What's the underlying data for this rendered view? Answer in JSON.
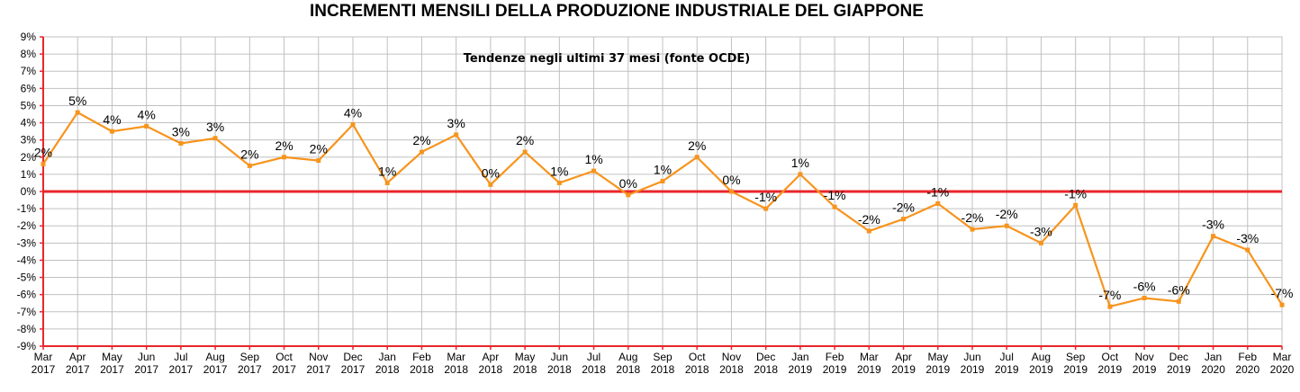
{
  "chart_data": {
    "type": "line",
    "title": "INCREMENTI MENSILI DELLA PRODUZIONE INDUSTRIALE DEL GIAPPONE",
    "subtitle": "Tendenze negli ultimi 37 mesi (fonte OCDE)",
    "xlabel": "",
    "ylabel": "",
    "ylim": [
      -9,
      9
    ],
    "y_ticks": [
      "-9%",
      "-8%",
      "-7%",
      "-6%",
      "-5%",
      "-4%",
      "-3%",
      "-2%",
      "-1%",
      "0%",
      "1%",
      "2%",
      "3%",
      "4%",
      "5%",
      "6%",
      "7%",
      "8%",
      "9%"
    ],
    "grid": true,
    "categories": [
      [
        "Mar",
        "2017"
      ],
      [
        "Apr",
        "2017"
      ],
      [
        "May",
        "2017"
      ],
      [
        "Jun",
        "2017"
      ],
      [
        "Jul",
        "2017"
      ],
      [
        "Aug",
        "2017"
      ],
      [
        "Sep",
        "2017"
      ],
      [
        "Oct",
        "2017"
      ],
      [
        "Nov",
        "2017"
      ],
      [
        "Dec",
        "2017"
      ],
      [
        "Jan",
        "2018"
      ],
      [
        "Feb",
        "2018"
      ],
      [
        "Mar",
        "2018"
      ],
      [
        "Apr",
        "2018"
      ],
      [
        "May",
        "2018"
      ],
      [
        "Jun",
        "2018"
      ],
      [
        "Jul",
        "2018"
      ],
      [
        "Aug",
        "2018"
      ],
      [
        "Sep",
        "2018"
      ],
      [
        "Oct",
        "2018"
      ],
      [
        "Nov",
        "2018"
      ],
      [
        "Dec",
        "2018"
      ],
      [
        "Jan",
        "2019"
      ],
      [
        "Feb",
        "2019"
      ],
      [
        "Mar",
        "2019"
      ],
      [
        "Apr",
        "2019"
      ],
      [
        "May",
        "2019"
      ],
      [
        "Jun",
        "2019"
      ],
      [
        "Jul",
        "2019"
      ],
      [
        "Aug",
        "2019"
      ],
      [
        "Sep",
        "2019"
      ],
      [
        "Oct",
        "2019"
      ],
      [
        "Nov",
        "2019"
      ],
      [
        "Dec",
        "2019"
      ],
      [
        "Jan",
        "2020"
      ],
      [
        "Feb",
        "2020"
      ],
      [
        "Mar",
        "2020"
      ]
    ],
    "series": [
      {
        "values": [
          1.6,
          4.6,
          3.5,
          3.8,
          2.8,
          3.1,
          1.5,
          2.0,
          1.8,
          3.9,
          0.5,
          2.3,
          3.3,
          0.4,
          2.3,
          0.5,
          1.2,
          -0.2,
          0.6,
          2.0,
          0.0,
          -1.0,
          1.0,
          -0.9,
          -2.3,
          -1.6,
          -0.7,
          -2.2,
          -2.0,
          -3.0,
          -0.8,
          -6.7,
          -6.2,
          -6.4,
          -2.6,
          -3.4,
          -6.6
        ],
        "data_labels": [
          "2%",
          "5%",
          "4%",
          "4%",
          "3%",
          "3%",
          "2%",
          "2%",
          "2%",
          "4%",
          "1%",
          "2%",
          "3%",
          "0%",
          "2%",
          "1%",
          "1%",
          "0%",
          "1%",
          "2%",
          "0%",
          "-1%",
          "1%",
          "-1%",
          "-2%",
          "-2%",
          "-1%",
          "-2%",
          "-2%",
          "-3%",
          "-1%",
          "-7%",
          "-6%",
          "-6%",
          "-3%",
          "-3%",
          "-7%"
        ],
        "color": "#F7941D"
      }
    ],
    "zero_line_color": "#E8262B",
    "axis_color": "#E8262B",
    "grid_color": "#C0C0C0"
  }
}
